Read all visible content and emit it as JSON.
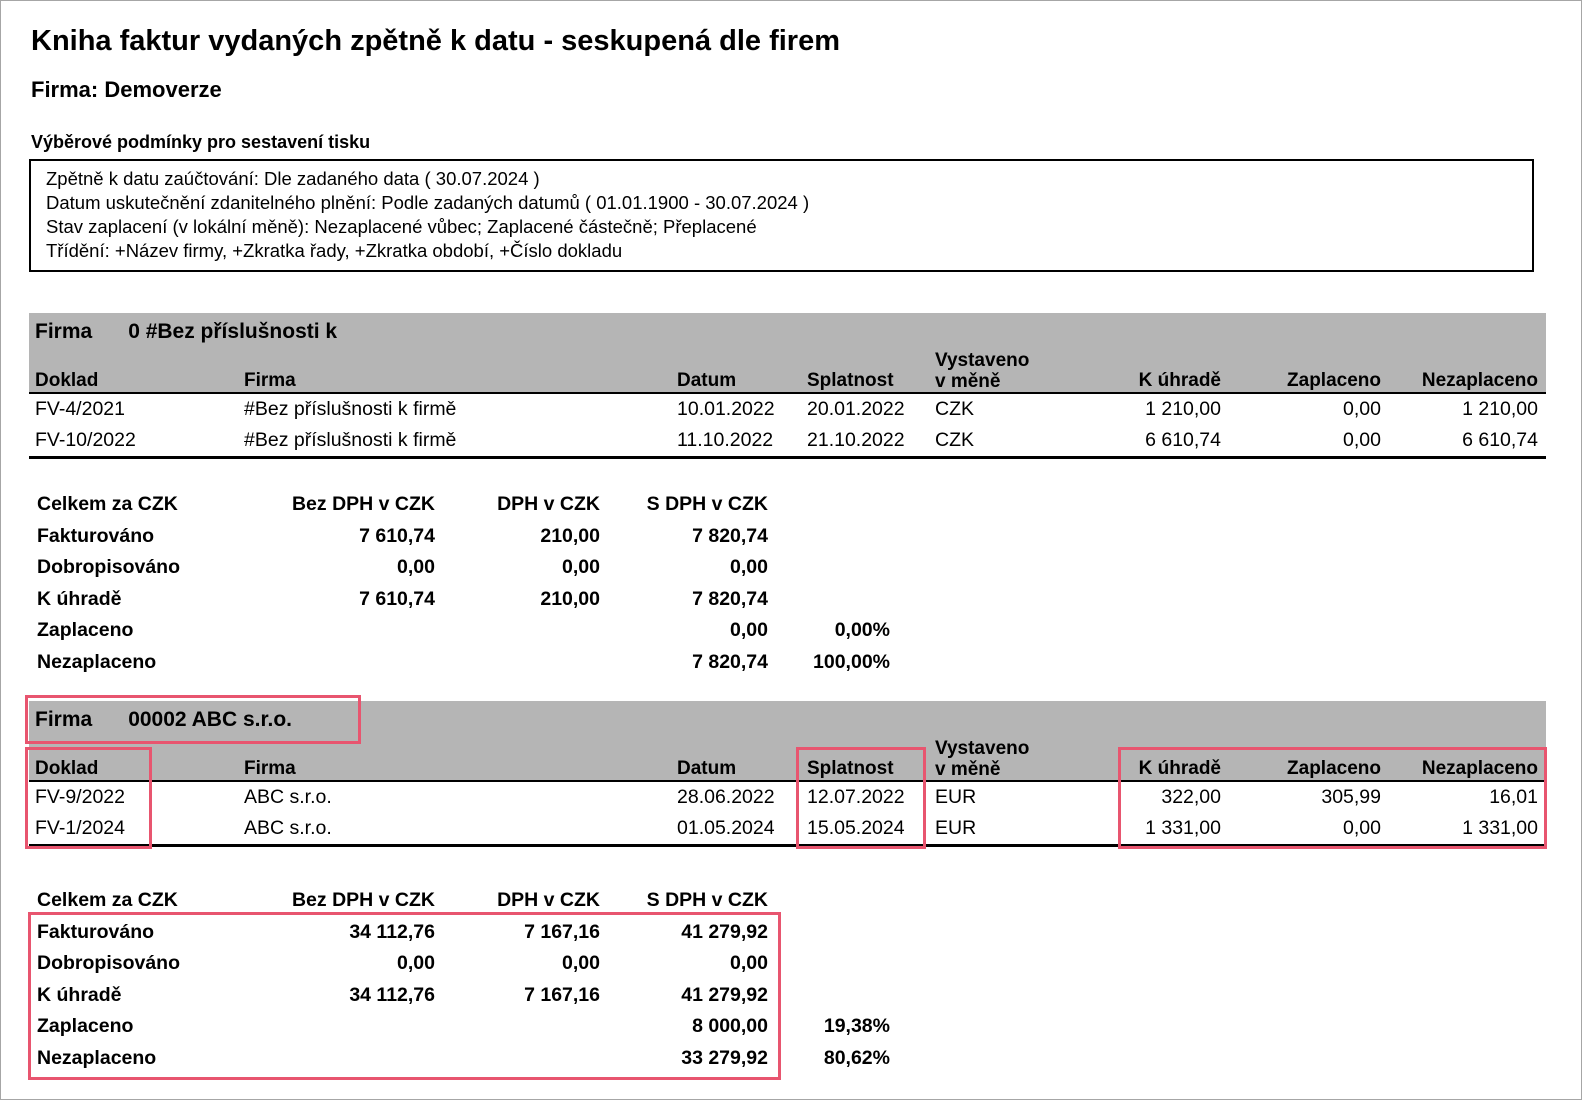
{
  "page": {
    "title": "Kniha faktur vydaných zpětně k datu - seskupená dle firem",
    "company_line": "Firma: Demoverze",
    "conditions_title": "Výběrové podmínky pro sestavení tisku",
    "conditions": [
      "Zpětně k datu zaúčtování: Dle zadaného data ( 30.07.2024 )",
      "Datum uskutečnění zdanitelného plnění: Podle zadaných datumů ( 01.01.1900 - 30.07.2024 )",
      "Stav zaplacení (v lokální měně): Nezaplacené vůbec; Zaplacené částečně; Přeplacené",
      "Třídění: +Název firmy, +Zkratka řady, +Zkratka období, +Číslo dokladu"
    ]
  },
  "columns": {
    "doklad": "Doklad",
    "firma": "Firma",
    "datum": "Datum",
    "splatnost": "Splatnost",
    "vystaveno_line1": "Vystaveno",
    "vystaveno_line2": "v měně",
    "k_uhrade": "K úhradě",
    "zaplaceno": "Zaplaceno",
    "nezaplaceno": "Nezaplaceno"
  },
  "summary_columns": {
    "label": "Celkem za CZK",
    "bez_dph": "Bez DPH v CZK",
    "dph": "DPH v CZK",
    "s_dph": "S DPH v CZK"
  },
  "groups": [
    {
      "group_label": "Firma",
      "group_name": "0 #Bez příslušnosti k",
      "invoices": [
        {
          "doklad": "FV-4/2021",
          "firma": "#Bez příslušnosti k firmě",
          "datum": "10.01.2022",
          "splatnost": "20.01.2022",
          "mena": "CZK",
          "k_uhrade": "1 210,00",
          "zaplaceno": "0,00",
          "nezaplaceno": "1 210,00"
        },
        {
          "doklad": "FV-10/2022",
          "firma": "#Bez příslušnosti k firmě",
          "datum": "11.10.2022",
          "splatnost": "21.10.2022",
          "mena": "CZK",
          "k_uhrade": "6 610,74",
          "zaplaceno": "0,00",
          "nezaplaceno": "6 610,74"
        }
      ],
      "summary": [
        {
          "label": "Fakturováno",
          "bez_dph": "7 610,74",
          "dph": "210,00",
          "s_dph": "7 820,74",
          "pct": ""
        },
        {
          "label": "Dobropisováno",
          "bez_dph": "0,00",
          "dph": "0,00",
          "s_dph": "0,00",
          "pct": ""
        },
        {
          "label": "K úhradě",
          "bez_dph": "7 610,74",
          "dph": "210,00",
          "s_dph": "7 820,74",
          "pct": ""
        },
        {
          "label": "Zaplaceno",
          "bez_dph": "",
          "dph": "",
          "s_dph": "0,00",
          "pct": "0,00%"
        },
        {
          "label": "Nezaplaceno",
          "bez_dph": "",
          "dph": "",
          "s_dph": "7 820,74",
          "pct": "100,00%"
        }
      ]
    },
    {
      "group_label": "Firma",
      "group_name": "00002 ABC s.r.o.",
      "invoices": [
        {
          "doklad": "FV-9/2022",
          "firma": "ABC s.r.o.",
          "datum": "28.06.2022",
          "splatnost": "12.07.2022",
          "mena": "EUR",
          "k_uhrade": "322,00",
          "zaplaceno": "305,99",
          "nezaplaceno": "16,01"
        },
        {
          "doklad": "FV-1/2024",
          "firma": "ABC s.r.o.",
          "datum": "01.05.2024",
          "splatnost": "15.05.2024",
          "mena": "EUR",
          "k_uhrade": "1 331,00",
          "zaplaceno": "0,00",
          "nezaplaceno": "1 331,00"
        }
      ],
      "summary": [
        {
          "label": "Fakturováno",
          "bez_dph": "34 112,76",
          "dph": "7 167,16",
          "s_dph": "41 279,92",
          "pct": ""
        },
        {
          "label": "Dobropisováno",
          "bez_dph": "0,00",
          "dph": "0,00",
          "s_dph": "0,00",
          "pct": ""
        },
        {
          "label": "K úhradě",
          "bez_dph": "34 112,76",
          "dph": "7 167,16",
          "s_dph": "41 279,92",
          "pct": ""
        },
        {
          "label": "Zaplaceno",
          "bez_dph": "",
          "dph": "",
          "s_dph": "8 000,00",
          "pct": "19,38%"
        },
        {
          "label": "Nezaplaceno",
          "bez_dph": "",
          "dph": "",
          "s_dph": "33 279,92",
          "pct": "80,62%"
        }
      ]
    }
  ],
  "annotations": {
    "highlight_color": "#e8556f"
  }
}
